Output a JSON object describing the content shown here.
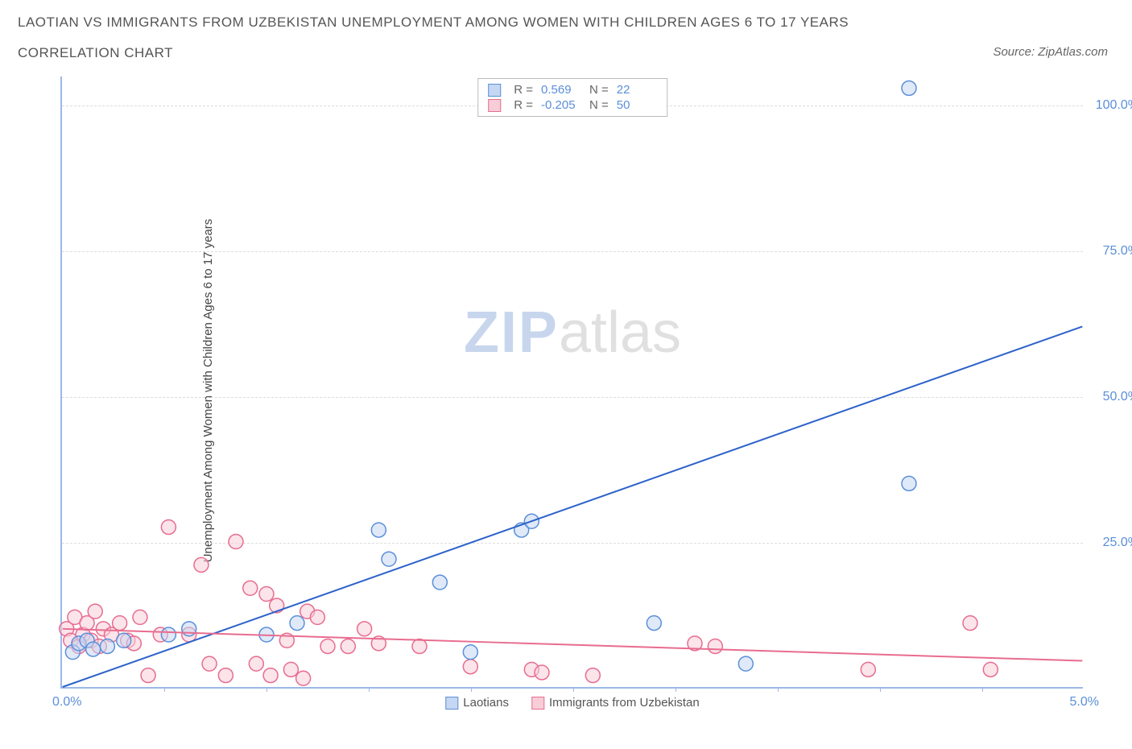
{
  "title_line1": "LAOTIAN VS IMMIGRANTS FROM UZBEKISTAN UNEMPLOYMENT AMONG WOMEN WITH CHILDREN AGES 6 TO 17 YEARS",
  "title_line2": "CORRELATION CHART",
  "source_label": "Source: ZipAtlas.com",
  "y_axis_label": "Unemployment Among Women with Children Ages 6 to 17 years",
  "watermark_zip": "ZIP",
  "watermark_atlas": "atlas",
  "chart": {
    "type": "scatter",
    "xlim": [
      0,
      5
    ],
    "ylim": [
      0,
      105
    ],
    "x_origin_label": "0.0%",
    "x_max_label": "5.0%",
    "x_tick_positions": [
      0.5,
      1.0,
      1.5,
      2.0,
      2.5,
      3.0,
      3.5,
      4.0,
      4.5
    ],
    "y_ticks": [
      {
        "v": 25,
        "label": "25.0%"
      },
      {
        "v": 50,
        "label": "50.0%"
      },
      {
        "v": 75,
        "label": "75.0%"
      },
      {
        "v": 100,
        "label": "100.0%"
      }
    ],
    "series": [
      {
        "name": "Laotians",
        "color_fill": "#c5d7f2",
        "color_stroke": "#5b8fd9",
        "marker_radius": 9,
        "fill_opacity": 0.55,
        "R": "0.569",
        "N": "22",
        "trend": {
          "x1": 0.0,
          "y1": 0.0,
          "x2": 5.0,
          "y2": 62.0,
          "color": "#2c62c9",
          "width": 2
        },
        "points": [
          [
            0.05,
            6
          ],
          [
            0.08,
            7.5
          ],
          [
            0.12,
            8
          ],
          [
            0.15,
            6.5
          ],
          [
            0.22,
            7
          ],
          [
            0.3,
            8
          ],
          [
            0.52,
            9
          ],
          [
            0.62,
            10
          ],
          [
            1.0,
            9
          ],
          [
            1.15,
            11
          ],
          [
            1.55,
            27
          ],
          [
            1.6,
            22
          ],
          [
            1.85,
            18
          ],
          [
            2.0,
            6
          ],
          [
            2.25,
            27
          ],
          [
            2.3,
            28.5
          ],
          [
            2.9,
            11
          ],
          [
            3.35,
            4
          ],
          [
            4.15,
            35
          ],
          [
            4.15,
            103
          ]
        ]
      },
      {
        "name": "Immigrants from Uzbekistan",
        "color_fill": "#f7cdd8",
        "color_stroke": "#e86c8f",
        "marker_radius": 9,
        "fill_opacity": 0.55,
        "R": "-0.205",
        "N": "50",
        "trend": {
          "x1": 0.0,
          "y1": 10.0,
          "x2": 5.0,
          "y2": 4.5,
          "color": "#e86c8f",
          "width": 2
        },
        "points": [
          [
            0.02,
            10
          ],
          [
            0.04,
            8
          ],
          [
            0.06,
            12
          ],
          [
            0.08,
            7
          ],
          [
            0.1,
            9
          ],
          [
            0.12,
            11
          ],
          [
            0.14,
            8
          ],
          [
            0.16,
            13
          ],
          [
            0.18,
            7
          ],
          [
            0.2,
            10
          ],
          [
            0.24,
            9
          ],
          [
            0.28,
            11
          ],
          [
            0.32,
            8
          ],
          [
            0.35,
            7.5
          ],
          [
            0.38,
            12
          ],
          [
            0.42,
            2
          ],
          [
            0.48,
            9
          ],
          [
            0.52,
            27.5
          ],
          [
            0.62,
            9
          ],
          [
            0.68,
            21
          ],
          [
            0.72,
            4
          ],
          [
            0.8,
            2
          ],
          [
            0.85,
            25
          ],
          [
            0.92,
            17
          ],
          [
            0.95,
            4
          ],
          [
            1.0,
            16
          ],
          [
            1.02,
            2
          ],
          [
            1.05,
            14
          ],
          [
            1.1,
            8
          ],
          [
            1.12,
            3
          ],
          [
            1.18,
            1.5
          ],
          [
            1.2,
            13
          ],
          [
            1.25,
            12
          ],
          [
            1.3,
            7
          ],
          [
            1.4,
            7
          ],
          [
            1.48,
            10
          ],
          [
            1.55,
            7.5
          ],
          [
            1.75,
            7
          ],
          [
            2.0,
            3.5
          ],
          [
            2.3,
            3
          ],
          [
            2.35,
            2.5
          ],
          [
            2.6,
            2
          ],
          [
            3.1,
            7.5
          ],
          [
            3.2,
            7
          ],
          [
            3.95,
            3
          ],
          [
            4.45,
            11
          ],
          [
            4.55,
            3
          ]
        ]
      }
    ],
    "bottom_legend": [
      {
        "label": "Laotians",
        "fill": "#c5d7f2",
        "stroke": "#5b8fd9"
      },
      {
        "label": "Immigrants from Uzbekistan",
        "fill": "#f7cdd8",
        "stroke": "#e86c8f"
      }
    ],
    "stats_labels": {
      "R": "R =",
      "N": "N ="
    }
  }
}
